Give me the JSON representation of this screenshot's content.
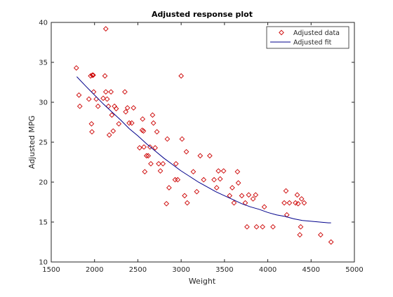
{
  "chart_data": {
    "type": "scatter",
    "title": "Adjusted response plot",
    "xlabel": "Weight",
    "ylabel": "Adjusted MPG",
    "xlim": [
      1500,
      5000
    ],
    "ylim": [
      10,
      40
    ],
    "xticks": [
      1500,
      2000,
      2500,
      3000,
      3500,
      4000,
      4500,
      5000
    ],
    "yticks": [
      10,
      15,
      20,
      25,
      30,
      35,
      40
    ],
    "grid": false,
    "legend_position": "top-right",
    "colors": {
      "data": "#cc0000",
      "fit": "#00008b",
      "axis": "#262626"
    },
    "series": [
      {
        "name": "Adjusted data",
        "kind": "markers",
        "marker": "diamond",
        "points": [
          [
            1790,
            34.3
          ],
          [
            1820,
            30.9
          ],
          [
            1830,
            29.5
          ],
          [
            1935,
            30.4
          ],
          [
            1955,
            33.3
          ],
          [
            1975,
            33.4
          ],
          [
            1985,
            33.4
          ],
          [
            1965,
            27.3
          ],
          [
            1970,
            26.3
          ],
          [
            1990,
            31.3
          ],
          [
            2020,
            30.4
          ],
          [
            2040,
            29.5
          ],
          [
            2100,
            30.5
          ],
          [
            2120,
            33.3
          ],
          [
            2130,
            39.2
          ],
          [
            2130,
            31.3
          ],
          [
            2145,
            30.4
          ],
          [
            2160,
            29.5
          ],
          [
            2170,
            25.9
          ],
          [
            2190,
            31.3
          ],
          [
            2200,
            28.4
          ],
          [
            2215,
            26.4
          ],
          [
            2230,
            29.5
          ],
          [
            2250,
            29.2
          ],
          [
            2280,
            27.3
          ],
          [
            2350,
            31.3
          ],
          [
            2360,
            28.8
          ],
          [
            2380,
            29.3
          ],
          [
            2400,
            27.4
          ],
          [
            2430,
            27.4
          ],
          [
            2450,
            29.3
          ],
          [
            2520,
            24.3
          ],
          [
            2550,
            26.5
          ],
          [
            2555,
            27.9
          ],
          [
            2565,
            26.4
          ],
          [
            2570,
            24.4
          ],
          [
            2580,
            21.3
          ],
          [
            2600,
            23.3
          ],
          [
            2620,
            23.3
          ],
          [
            2640,
            24.4
          ],
          [
            2650,
            22.3
          ],
          [
            2670,
            28.4
          ],
          [
            2680,
            27.4
          ],
          [
            2700,
            24.3
          ],
          [
            2720,
            26.3
          ],
          [
            2740,
            22.3
          ],
          [
            2760,
            21.4
          ],
          [
            2790,
            22.3
          ],
          [
            2830,
            17.3
          ],
          [
            2840,
            25.4
          ],
          [
            2860,
            19.3
          ],
          [
            2930,
            20.3
          ],
          [
            2940,
            22.3
          ],
          [
            2960,
            20.3
          ],
          [
            3000,
            33.3
          ],
          [
            3010,
            25.4
          ],
          [
            3040,
            18.3
          ],
          [
            3060,
            23.8
          ],
          [
            3070,
            17.4
          ],
          [
            3140,
            21.3
          ],
          [
            3180,
            18.8
          ],
          [
            3220,
            23.3
          ],
          [
            3260,
            20.3
          ],
          [
            3330,
            23.3
          ],
          [
            3380,
            20.3
          ],
          [
            3410,
            19.3
          ],
          [
            3430,
            21.4
          ],
          [
            3450,
            20.4
          ],
          [
            3490,
            21.4
          ],
          [
            3560,
            18.3
          ],
          [
            3590,
            19.3
          ],
          [
            3610,
            17.4
          ],
          [
            3650,
            21.3
          ],
          [
            3660,
            19.9
          ],
          [
            3700,
            18.3
          ],
          [
            3740,
            17.4
          ],
          [
            3760,
            14.4
          ],
          [
            3780,
            18.4
          ],
          [
            3830,
            17.9
          ],
          [
            3860,
            18.4
          ],
          [
            3870,
            14.4
          ],
          [
            3940,
            14.4
          ],
          [
            3960,
            16.9
          ],
          [
            4060,
            14.4
          ],
          [
            4190,
            17.4
          ],
          [
            4210,
            18.9
          ],
          [
            4220,
            15.9
          ],
          [
            4250,
            17.4
          ],
          [
            4320,
            17.4
          ],
          [
            4340,
            18.4
          ],
          [
            4350,
            17.3
          ],
          [
            4370,
            13.4
          ],
          [
            4380,
            14.4
          ],
          [
            4390,
            17.9
          ],
          [
            4420,
            17.4
          ],
          [
            4610,
            13.4
          ],
          [
            4730,
            12.5
          ]
        ]
      },
      {
        "name": "Adjusted fit",
        "kind": "line",
        "points": [
          [
            1795,
            33.2
          ],
          [
            1900,
            32.0
          ],
          [
            2000,
            30.9
          ],
          [
            2100,
            29.8
          ],
          [
            2200,
            28.8
          ],
          [
            2300,
            27.8
          ],
          [
            2400,
            26.7
          ],
          [
            2500,
            25.8
          ],
          [
            2600,
            24.8
          ],
          [
            2700,
            23.9
          ],
          [
            2800,
            23.0
          ],
          [
            2900,
            22.2
          ],
          [
            3000,
            21.4
          ],
          [
            3100,
            20.7
          ],
          [
            3200,
            20.0
          ],
          [
            3300,
            19.4
          ],
          [
            3400,
            18.8
          ],
          [
            3500,
            18.3
          ],
          [
            3600,
            17.8
          ],
          [
            3700,
            17.3
          ],
          [
            3800,
            16.9
          ],
          [
            3900,
            16.6
          ],
          [
            4000,
            16.2
          ],
          [
            4100,
            15.9
          ],
          [
            4200,
            15.7
          ],
          [
            4300,
            15.4
          ],
          [
            4400,
            15.2
          ],
          [
            4500,
            15.1
          ],
          [
            4600,
            15.0
          ],
          [
            4700,
            14.9
          ],
          [
            4730,
            14.9
          ]
        ]
      }
    ]
  }
}
